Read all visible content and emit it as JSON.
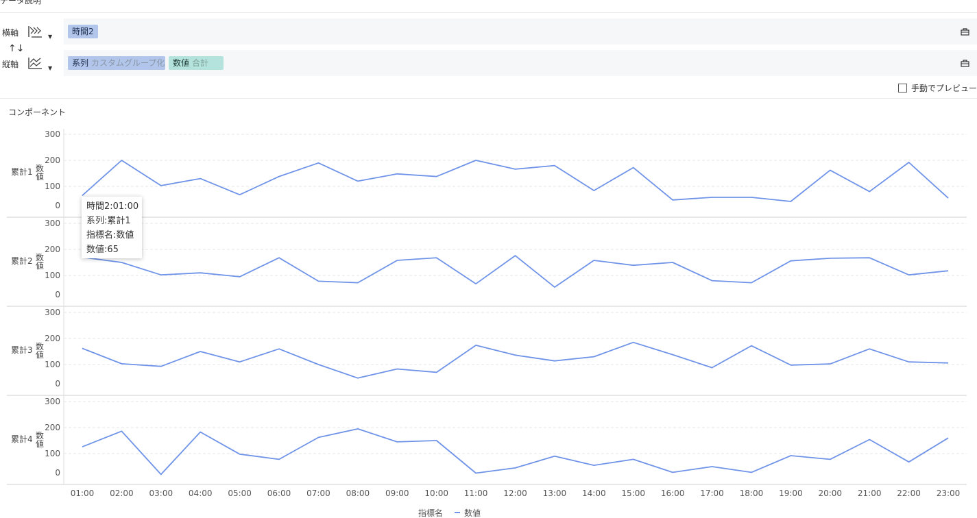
{
  "header": {
    "title": "データ説明"
  },
  "x_axis": {
    "label": "横軸",
    "field": "時間2"
  },
  "y_axis": {
    "label": "縦軸",
    "series_field": "系列",
    "series_sub": "カスタムグループ化",
    "value_field": "数値",
    "value_sub": "合計"
  },
  "swap_icon": "↑↓",
  "manual_preview": {
    "label": "手動でプレビュー",
    "checked": false
  },
  "component_title": "コンポーネント",
  "tooltip": {
    "line1": "時間2:01:00",
    "line2": "系列:累計1",
    "line3": "指標名:数値",
    "line4": "数値:65"
  },
  "icons": {
    "axis_x": "x-axis-chart-icon",
    "axis_y": "y-axis-chart-icon",
    "lock": "lock-icon"
  },
  "colors": {
    "line": "#6f93e8",
    "grid": "#e6e6e6",
    "pill_blue": "#b1c6ea",
    "pill_green": "#b3e3dc"
  },
  "chart_data": {
    "type": "line",
    "x": [
      "01:00",
      "02:00",
      "03:00",
      "04:00",
      "05:00",
      "06:00",
      "07:00",
      "08:00",
      "09:00",
      "10:00",
      "11:00",
      "12:00",
      "13:00",
      "14:00",
      "15:00",
      "16:00",
      "17:00",
      "18:00",
      "19:00",
      "20:00",
      "21:00",
      "22:00",
      "23:00"
    ],
    "y_ticks": [
      0,
      100,
      200,
      300
    ],
    "ylim": [
      0,
      300
    ],
    "ylabel": "数値",
    "legend": {
      "title": "指標名",
      "entry": "数値",
      "position": "bottom"
    },
    "panels": [
      {
        "name": "累計1",
        "values": [
          65,
          200,
          103,
          130,
          68,
          138,
          190,
          120,
          148,
          138,
          200,
          166,
          180,
          84,
          172,
          48,
          58,
          58,
          42,
          162,
          80,
          192,
          55
        ]
      },
      {
        "name": "累計2",
        "values": [
          170,
          150,
          102,
          110,
          95,
          168,
          78,
          72,
          158,
          168,
          68,
          176,
          55,
          158,
          139,
          150,
          80,
          72,
          156,
          166,
          168,
          102,
          118
        ]
      },
      {
        "name": "累計3",
        "values": [
          162,
          103,
          93,
          150,
          110,
          160,
          100,
          48,
          83,
          70,
          174,
          136,
          114,
          130,
          185,
          138,
          88,
          172,
          98,
          102,
          160,
          110,
          106
        ]
      },
      {
        "name": "累計4",
        "values": [
          126,
          186,
          20,
          183,
          98,
          78,
          162,
          195,
          145,
          150,
          25,
          45,
          90,
          55,
          78,
          28,
          50,
          28,
          92,
          78,
          154,
          68,
          160
        ]
      }
    ]
  }
}
